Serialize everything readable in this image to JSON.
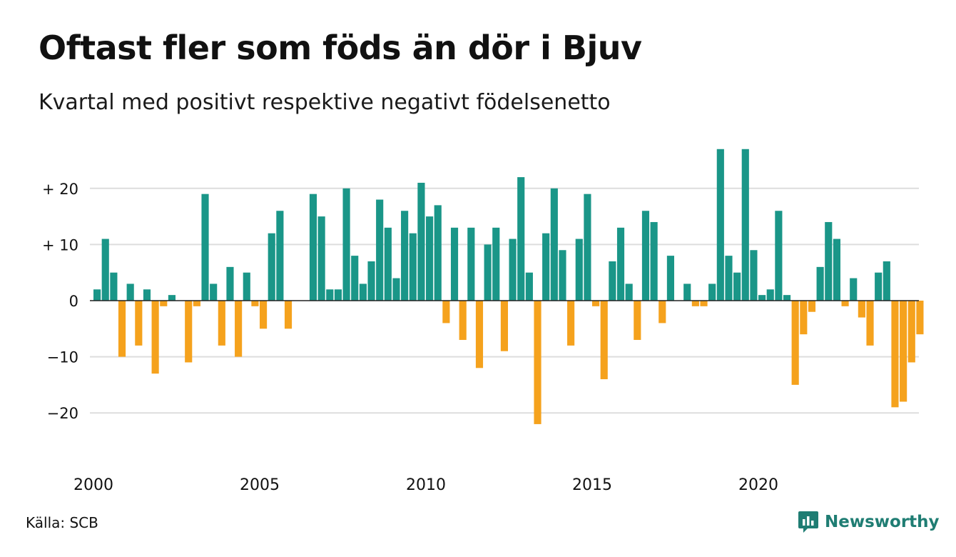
{
  "header": {
    "title": "Oftast fler som föds än dör i Bjuv",
    "subtitle": "Kvartal med positivt respektive negativt födelsenetto"
  },
  "footer": {
    "source": "Källa: SCB",
    "brand": "Newsworthy",
    "brand_icon": "bar-chart-speech-bubble-icon"
  },
  "chart_data": {
    "type": "bar",
    "x_start": "2000 Q1",
    "x_ticks": [
      "2000",
      "2005",
      "2010",
      "2015",
      "2020"
    ],
    "y_ticks": [
      {
        "value": 20,
        "label": "+ 20"
      },
      {
        "value": 10,
        "label": "+ 10"
      },
      {
        "value": 0,
        "label": "0"
      },
      {
        "value": -10,
        "label": "−10"
      },
      {
        "value": -20,
        "label": "−20"
      }
    ],
    "ylim": [
      -25,
      28
    ],
    "grid": true,
    "colors": {
      "positive": "#1a9688",
      "negative": "#f5a21d",
      "grid": "#dddddd",
      "axis": "#222222"
    },
    "values": [
      2,
      11,
      5,
      -10,
      3,
      -8,
      2,
      -13,
      -1,
      1,
      0,
      -11,
      -1,
      19,
      3,
      -8,
      6,
      -10,
      5,
      -1,
      -5,
      12,
      16,
      -5,
      0,
      0,
      19,
      15,
      2,
      2,
      20,
      8,
      3,
      7,
      18,
      13,
      4,
      16,
      12,
      21,
      15,
      17,
      -4,
      13,
      -7,
      13,
      -12,
      10,
      13,
      -9,
      11,
      22,
      5,
      -22,
      12,
      20,
      9,
      -8,
      11,
      19,
      -1,
      -14,
      7,
      13,
      3,
      -7,
      16,
      14,
      -4,
      8,
      0,
      3,
      -1,
      -1,
      3,
      27,
      8,
      5,
      27,
      9,
      1,
      2,
      16,
      1,
      -15,
      -6,
      -2,
      6,
      14,
      11,
      -1,
      4,
      -3,
      -8,
      5,
      7,
      -19,
      -18,
      -11,
      -6
    ]
  }
}
